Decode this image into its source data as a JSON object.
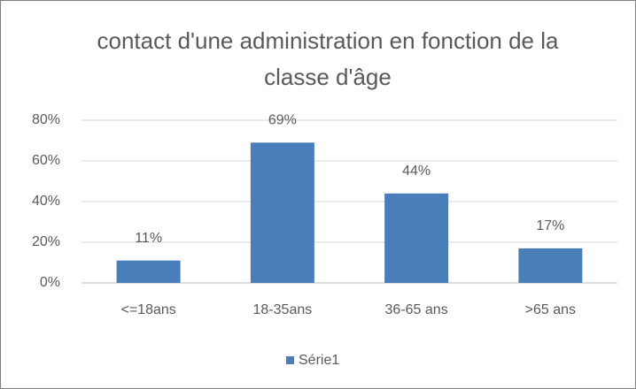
{
  "chart_data": {
    "type": "bar",
    "title": "contact d'une administration en fonction de la classe d'âge",
    "categories": [
      "<=18ans",
      "18-35ans",
      "36-65 ans",
      ">65 ans"
    ],
    "series": [
      {
        "name": "Série1",
        "color": "#4a7ebb",
        "values": [
          11,
          69,
          44,
          17
        ],
        "value_labels": [
          "11%",
          "69%",
          "44%",
          "17%"
        ]
      }
    ],
    "ylim": [
      0,
      80
    ],
    "yticks": [
      {
        "value": 0,
        "label": "0%"
      },
      {
        "value": 20,
        "label": "20%"
      },
      {
        "value": 40,
        "label": "40%"
      },
      {
        "value": 60,
        "label": "60%"
      },
      {
        "value": 80,
        "label": "80%"
      }
    ],
    "grid": true,
    "legend": "bottom"
  }
}
